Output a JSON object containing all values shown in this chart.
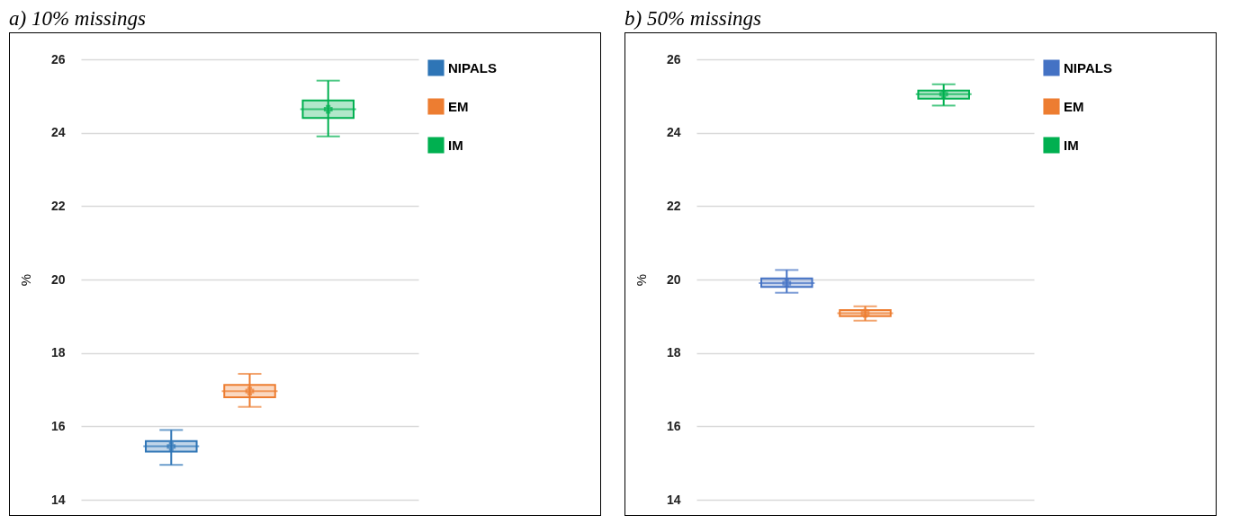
{
  "chart_data": [
    {
      "type": "box",
      "title": "a) 10% missings",
      "ylabel": "%",
      "categories": [
        null
      ],
      "ylim": [
        14,
        26
      ],
      "yticks": [
        14,
        16,
        18,
        20,
        22,
        24,
        26
      ],
      "grid": "y",
      "legend": "right",
      "tick_labels": "y",
      "series": [
        {
          "name": "NIPALS",
          "color": "#2e75b6",
          "boxes": [
            {
              "low": 14.95,
              "q1": 15.31,
              "median": 15.46,
              "q3": 15.6,
              "high": 15.9,
              "mean": 15.45
            }
          ]
        },
        {
          "name": "EM",
          "color": "#ed7d31",
          "boxes": [
            {
              "low": 16.53,
              "q1": 16.79,
              "median": 16.96,
              "q3": 17.13,
              "high": 17.43,
              "mean": 16.96
            }
          ]
        },
        {
          "name": "IM",
          "color": "#00b050",
          "boxes": [
            {
              "low": 23.9,
              "q1": 24.4,
              "median": 24.64,
              "q3": 24.88,
              "high": 25.42,
              "mean": 24.64
            }
          ]
        }
      ]
    },
    {
      "type": "box",
      "title": "b) 50% missings",
      "ylabel": "%",
      "categories": [
        null
      ],
      "ylim": [
        14,
        26
      ],
      "yticks": [
        14,
        16,
        18,
        20,
        22,
        24,
        26
      ],
      "grid": "y",
      "legend": "right",
      "tick_labels": "y",
      "series": [
        {
          "name": "NIPALS",
          "color": "#4472c4",
          "boxes": [
            {
              "low": 19.64,
              "q1": 19.8,
              "median": 19.9,
              "q3": 20.03,
              "high": 20.26,
              "mean": 19.9
            }
          ]
        },
        {
          "name": "EM",
          "color": "#ed7d31",
          "boxes": [
            {
              "low": 18.88,
              "q1": 19.0,
              "median": 19.08,
              "q3": 19.17,
              "high": 19.27,
              "mean": 19.08
            }
          ]
        },
        {
          "name": "IM",
          "color": "#00b050",
          "boxes": [
            {
              "low": 24.74,
              "q1": 24.93,
              "median": 25.05,
              "q3": 25.15,
              "high": 25.32,
              "mean": 25.05
            }
          ]
        }
      ]
    }
  ]
}
